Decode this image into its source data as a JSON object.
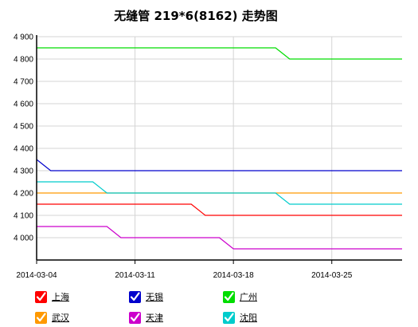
{
  "chart_data": {
    "type": "line",
    "title": "无缝管 219*6(8162) 走势图",
    "xlabel": "",
    "ylabel": "",
    "x_ticks": [
      "2014-03-04",
      "2014-03-11",
      "2014-03-18",
      "2014-03-25"
    ],
    "x_range": [
      "2014-03-04",
      "2014-03-30"
    ],
    "y_ticks": [
      "4 000",
      "4 100",
      "4 200",
      "4 300",
      "4 400",
      "4 500",
      "4 600",
      "4 700",
      "4 800",
      "4 900"
    ],
    "y_tick_values": [
      4000,
      4100,
      4200,
      4300,
      4400,
      4500,
      4600,
      4700,
      4800,
      4900
    ],
    "ylim": [
      3900,
      4900
    ],
    "grid": true,
    "legend_position": "bottom",
    "series": [
      {
        "name": "上海",
        "color": "#ff0000",
        "points": [
          [
            "2014-03-04",
            4150
          ],
          [
            "2014-03-15",
            4150
          ],
          [
            "2014-03-16",
            4100
          ],
          [
            "2014-03-30",
            4100
          ]
        ]
      },
      {
        "name": "无锡",
        "color": "#0000cc",
        "points": [
          [
            "2014-03-04",
            4350
          ],
          [
            "2014-03-05",
            4300
          ],
          [
            "2014-03-30",
            4300
          ]
        ]
      },
      {
        "name": "广州",
        "color": "#00dd00",
        "points": [
          [
            "2014-03-04",
            4850
          ],
          [
            "2014-03-21",
            4850
          ],
          [
            "2014-03-22",
            4800
          ],
          [
            "2014-03-30",
            4800
          ]
        ]
      },
      {
        "name": "武汉",
        "color": "#ff9900",
        "points": [
          [
            "2014-03-04",
            4200
          ],
          [
            "2014-03-30",
            4200
          ]
        ]
      },
      {
        "name": "天津",
        "color": "#cc00cc",
        "points": [
          [
            "2014-03-04",
            4050
          ],
          [
            "2014-03-09",
            4050
          ],
          [
            "2014-03-10",
            4000
          ],
          [
            "2014-03-17",
            4000
          ],
          [
            "2014-03-18",
            3950
          ],
          [
            "2014-03-30",
            3950
          ]
        ]
      },
      {
        "name": "沈阳",
        "color": "#00cccc",
        "points": [
          [
            "2014-03-04",
            4250
          ],
          [
            "2014-03-08",
            4250
          ],
          [
            "2014-03-09",
            4200
          ],
          [
            "2014-03-21",
            4200
          ],
          [
            "2014-03-22",
            4150
          ],
          [
            "2014-03-30",
            4150
          ]
        ]
      }
    ]
  }
}
